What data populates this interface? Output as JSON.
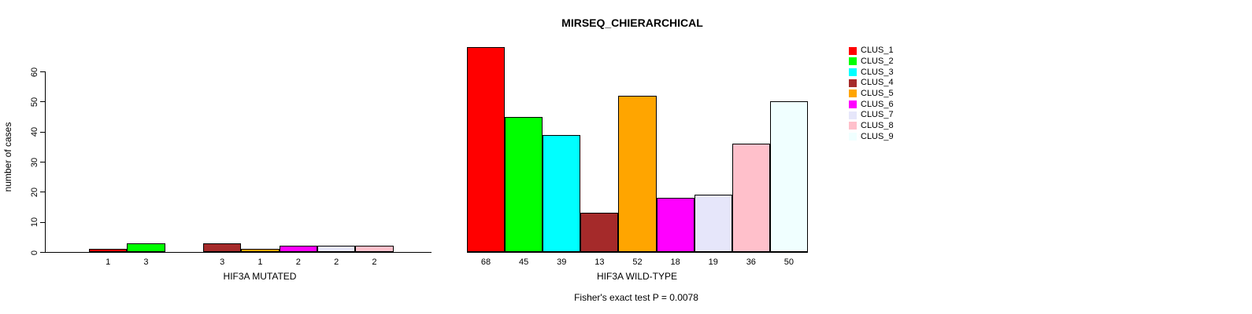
{
  "title": "MIRSEQ_CHIERARCHICAL",
  "footer": "Fisher's exact test P = 0.0078",
  "chart_data": {
    "type": "bar",
    "title": "MIRSEQ_CHIERARCHICAL",
    "ylabel": "number of cases",
    "ylim": [
      0,
      60
    ],
    "yticks": [
      0,
      10,
      20,
      30,
      40,
      50,
      60
    ],
    "grid": false,
    "bar_border_color": "#000000",
    "legend_position": "right",
    "legend": [
      {
        "label": "CLUS_1",
        "color": "#FF0000"
      },
      {
        "label": "CLUS_2",
        "color": "#00FF00"
      },
      {
        "label": "CLUS_3",
        "color": "#00FFFF"
      },
      {
        "label": "CLUS_4",
        "color": "#A52A2A"
      },
      {
        "label": "CLUS_5",
        "color": "#FFA500"
      },
      {
        "label": "CLUS_6",
        "color": "#FF00FF"
      },
      {
        "label": "CLUS_7",
        "color": "#E6E6FA"
      },
      {
        "label": "CLUS_8",
        "color": "#FFC0CB"
      },
      {
        "label": "CLUS_9",
        "color": "#F0FFFF"
      }
    ],
    "categories": [
      "CLUS_1",
      "CLUS_2",
      "CLUS_3",
      "CLUS_4",
      "CLUS_5",
      "CLUS_6",
      "CLUS_7",
      "CLUS_8",
      "CLUS_9"
    ],
    "panels": [
      {
        "id": "mutated",
        "xlabel": "HIF3A MUTATED",
        "values": [
          1,
          3,
          0,
          3,
          1,
          2,
          2,
          2,
          0
        ]
      },
      {
        "id": "wildtype",
        "xlabel": "HIF3A WILD-TYPE",
        "values": [
          68,
          45,
          39,
          13,
          52,
          18,
          19,
          36,
          50
        ]
      }
    ],
    "annotation": "Fisher's exact test P = 0.0078"
  }
}
